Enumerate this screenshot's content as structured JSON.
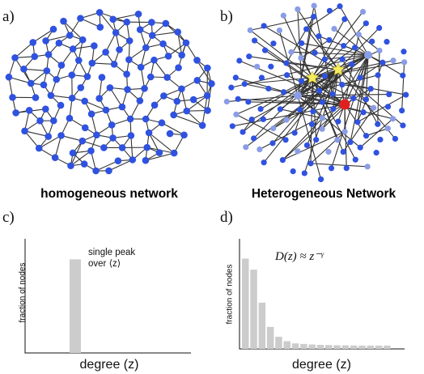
{
  "panels": {
    "a": {
      "label": "a)",
      "caption": "homogeneous network"
    },
    "b": {
      "label": "b)",
      "caption": "Heterogeneous Network"
    },
    "c": {
      "label": "c)"
    },
    "d": {
      "label": "d)"
    }
  },
  "colors": {
    "node": "#2f52e0",
    "node_light": "#8a9de6",
    "hub_yellow": "#f4ec5a",
    "hub_red": "#e0201f",
    "edge": "#333333",
    "bar": "#cccccc"
  },
  "chart_data": [
    {
      "type": "bar",
      "panel": "c",
      "title": "",
      "xlabel": "degree (z)",
      "ylabel": "fraction of nodes",
      "annotation_line1": "single peak",
      "annotation_line2": "over ⟨z⟩",
      "values": [
        0.82
      ],
      "ylim": [
        0,
        1
      ]
    },
    {
      "type": "bar",
      "panel": "d",
      "title": "",
      "xlabel": "degree (z)",
      "ylabel": "fraction of nodes",
      "formula": "D(z) ≈ z⁻ᵞ",
      "values": [
        0.82,
        0.72,
        0.42,
        0.2,
        0.11,
        0.07,
        0.05,
        0.045,
        0.04,
        0.037,
        0.035,
        0.033,
        0.032,
        0.031,
        0.03,
        0.03,
        0.03,
        0.03
      ],
      "ylim": [
        0,
        1
      ]
    }
  ]
}
